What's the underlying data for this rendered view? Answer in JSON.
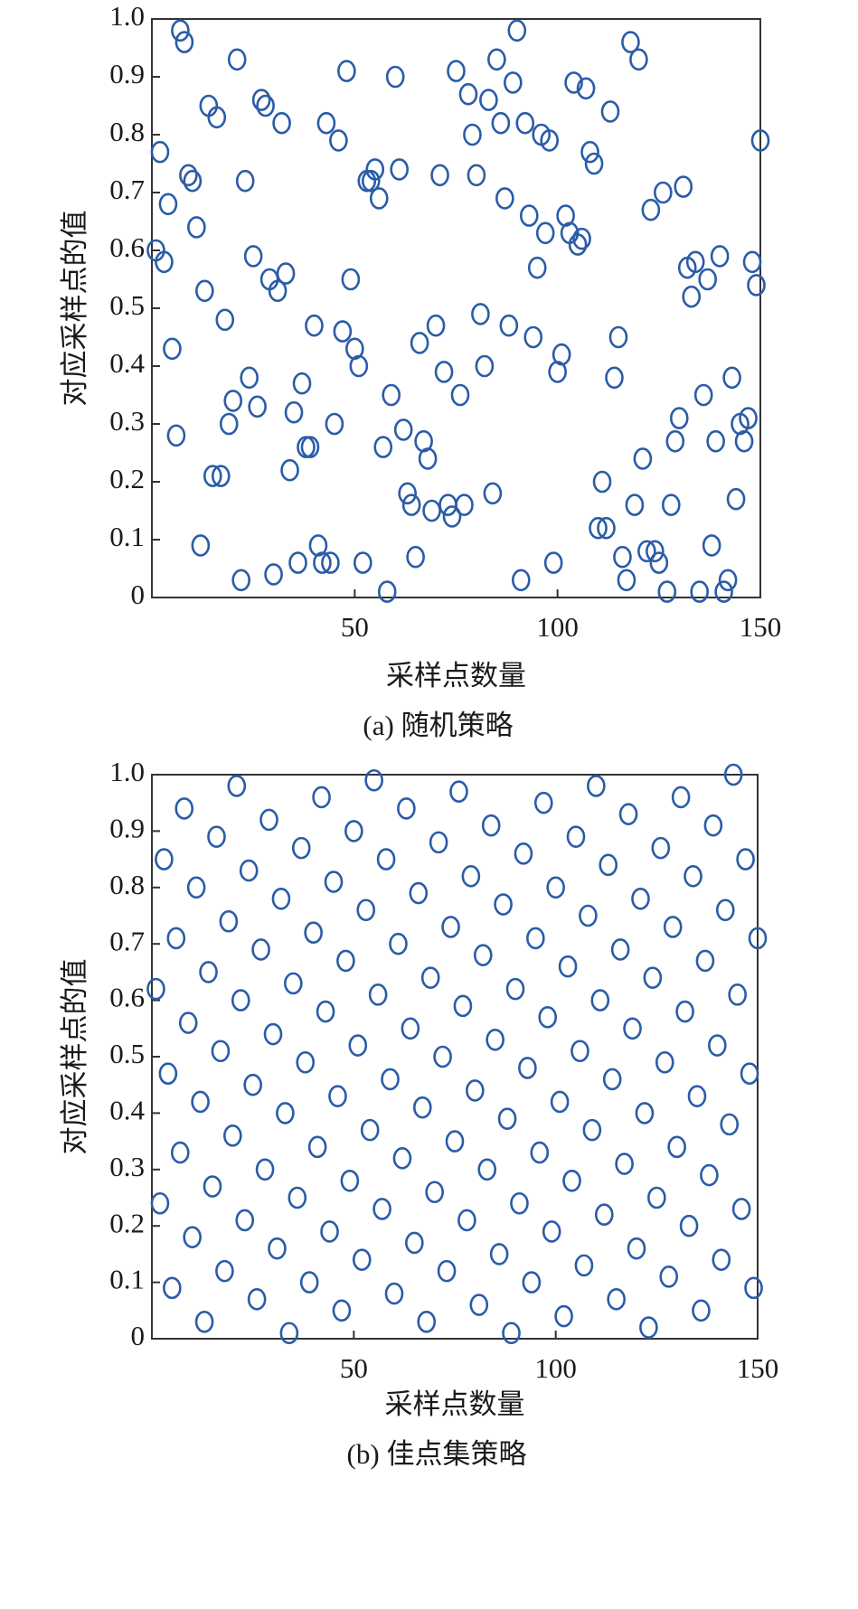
{
  "chart_data": [
    {
      "type": "scatter",
      "caption": "(a) 随机策略",
      "xlabel": "采样点数量",
      "ylabel": "对应采样点的值",
      "color": "#2a5ca8",
      "xlim": [
        0,
        150
      ],
      "xticks": [
        50,
        100,
        150
      ],
      "ylim": [
        0,
        1
      ],
      "yticks": [
        0,
        0.1,
        0.2,
        0.3,
        0.4,
        0.5,
        0.6,
        0.7,
        0.8,
        0.9,
        {
          "value": 1,
          "label": "1.0"
        }
      ],
      "x": [
        1,
        2,
        3,
        4,
        5,
        6,
        7,
        8,
        9,
        10,
        11,
        12,
        13,
        14,
        15,
        16,
        17,
        18,
        19,
        20,
        21,
        22,
        23,
        24,
        25,
        26,
        27,
        28,
        29,
        30,
        31,
        32,
        33,
        34,
        35,
        36,
        37,
        38,
        39,
        40,
        41,
        42,
        43,
        44,
        45,
        46,
        47,
        48,
        49,
        50,
        51,
        52,
        53,
        54,
        55,
        56,
        57,
        58,
        59,
        60,
        61,
        62,
        63,
        64,
        65,
        66,
        67,
        68,
        69,
        70,
        71,
        72,
        73,
        74,
        75,
        76,
        77,
        78,
        79,
        80,
        81,
        82,
        83,
        84,
        85,
        86,
        87,
        88,
        89,
        90,
        91,
        92,
        93,
        94,
        95,
        96,
        97,
        98,
        99,
        100,
        101,
        102,
        103,
        104,
        105,
        106,
        107,
        108,
        109,
        110,
        111,
        112,
        113,
        114,
        115,
        116,
        117,
        118,
        119,
        120,
        121,
        122,
        123,
        124,
        125,
        126,
        127,
        128,
        129,
        130,
        131,
        132,
        133,
        134,
        135,
        136,
        137,
        138,
        139,
        140,
        141,
        142,
        143,
        144,
        145,
        146,
        147,
        148,
        149,
        150
      ],
      "values": [
        0.6,
        0.77,
        0.58,
        0.68,
        0.43,
        0.28,
        0.98,
        0.96,
        0.73,
        0.72,
        0.64,
        0.09,
        0.53,
        0.85,
        0.21,
        0.83,
        0.21,
        0.48,
        0.3,
        0.34,
        0.93,
        0.03,
        0.72,
        0.38,
        0.59,
        0.33,
        0.86,
        0.85,
        0.55,
        0.04,
        0.53,
        0.82,
        0.56,
        0.22,
        0.32,
        0.06,
        0.37,
        0.26,
        0.26,
        0.47,
        0.09,
        0.06,
        0.82,
        0.06,
        0.3,
        0.79,
        0.46,
        0.91,
        0.55,
        0.43,
        0.4,
        0.06,
        0.72,
        0.72,
        0.74,
        0.69,
        0.26,
        0.01,
        0.35,
        0.9,
        0.74,
        0.29,
        0.18,
        0.16,
        0.07,
        0.44,
        0.27,
        0.24,
        0.15,
        0.47,
        0.73,
        0.39,
        0.16,
        0.14,
        0.91,
        0.35,
        0.16,
        0.87,
        0.8,
        0.73,
        0.49,
        0.4,
        0.86,
        0.18,
        0.93,
        0.82,
        0.69,
        0.47,
        0.89,
        0.98,
        0.03,
        0.82,
        0.66,
        0.45,
        0.57,
        0.8,
        0.63,
        0.79,
        0.06,
        0.39,
        0.42,
        0.66,
        0.63,
        0.89,
        0.61,
        0.62,
        0.88,
        0.77,
        0.75,
        0.12,
        0.2,
        0.12,
        0.84,
        0.38,
        0.45,
        0.07,
        0.03,
        0.96,
        0.16,
        0.93,
        0.24,
        0.08,
        0.67,
        0.08,
        0.06,
        0.7,
        0.01,
        0.16,
        0.27,
        0.31,
        0.71,
        0.57,
        0.52,
        0.58,
        0.01,
        0.35,
        0.55,
        0.09,
        0.27,
        0.59,
        0.01,
        0.03,
        0.38,
        0.17,
        0.3,
        0.27,
        0.31,
        0.58,
        0.54,
        0.79
      ]
    },
    {
      "type": "scatter",
      "caption": "(b) 佳点集策略",
      "xlabel": "采样点数量",
      "ylabel": "对应采样点的值",
      "color": "#2a5ca8",
      "xlim": [
        0,
        150
      ],
      "xticks": [
        50,
        100,
        150
      ],
      "ylim": [
        0,
        1
      ],
      "yticks": [
        0,
        0.1,
        0.2,
        0.3,
        0.4,
        0.5,
        0.6,
        0.7,
        0.8,
        0.9,
        {
          "value": 1,
          "label": "1.0"
        }
      ],
      "x": [
        1,
        2,
        3,
        4,
        5,
        6,
        7,
        8,
        9,
        10,
        11,
        12,
        13,
        14,
        15,
        16,
        17,
        18,
        19,
        20,
        21,
        22,
        23,
        24,
        25,
        26,
        27,
        28,
        29,
        30,
        31,
        32,
        33,
        34,
        35,
        36,
        37,
        38,
        39,
        40,
        41,
        42,
        43,
        44,
        45,
        46,
        47,
        48,
        49,
        50,
        51,
        52,
        53,
        54,
        55,
        56,
        57,
        58,
        59,
        60,
        61,
        62,
        63,
        64,
        65,
        66,
        67,
        68,
        69,
        70,
        71,
        72,
        73,
        74,
        75,
        76,
        77,
        78,
        79,
        80,
        81,
        82,
        83,
        84,
        85,
        86,
        87,
        88,
        89,
        90,
        91,
        92,
        93,
        94,
        95,
        96,
        97,
        98,
        99,
        100,
        101,
        102,
        103,
        104,
        105,
        106,
        107,
        108,
        109,
        110,
        111,
        112,
        113,
        114,
        115,
        116,
        117,
        118,
        119,
        120,
        121,
        122,
        123,
        124,
        125,
        126,
        127,
        128,
        129,
        130,
        131,
        132,
        133,
        134,
        135,
        136,
        137,
        138,
        139,
        140,
        141,
        142,
        143,
        144,
        145,
        146,
        147,
        148,
        149,
        150
      ],
      "values": [
        0.62,
        0.24,
        0.85,
        0.47,
        0.09,
        0.71,
        0.33,
        0.94,
        0.56,
        0.18,
        0.8,
        0.42,
        0.03,
        0.65,
        0.27,
        0.89,
        0.51,
        0.12,
        0.74,
        0.36,
        0.98,
        0.6,
        0.21,
        0.83,
        0.45,
        0.07,
        0.69,
        0.3,
        0.92,
        0.54,
        0.16,
        0.78,
        0.4,
        0.01,
        0.63,
        0.25,
        0.87,
        0.49,
        0.1,
        0.72,
        0.34,
        0.96,
        0.58,
        0.19,
        0.81,
        0.43,
        0.05,
        0.67,
        0.28,
        0.9,
        0.52,
        0.14,
        0.76,
        0.37,
        0.99,
        0.61,
        0.23,
        0.85,
        0.46,
        0.08,
        0.7,
        0.32,
        0.94,
        0.55,
        0.17,
        0.79,
        0.41,
        0.03,
        0.64,
        0.26,
        0.88,
        0.5,
        0.12,
        0.73,
        0.35,
        0.97,
        0.59,
        0.21,
        0.82,
        0.44,
        0.06,
        0.68,
        0.3,
        0.91,
        0.53,
        0.15,
        0.77,
        0.39,
        0.01,
        0.62,
        0.24,
        0.86,
        0.48,
        0.1,
        0.71,
        0.33,
        0.95,
        0.57,
        0.19,
        0.8,
        0.42,
        0.04,
        0.66,
        0.28,
        0.89,
        0.51,
        0.13,
        0.75,
        0.37,
        0.98,
        0.6,
        0.22,
        0.84,
        0.46,
        0.07,
        0.69,
        0.31,
        0.93,
        0.55,
        0.16,
        0.78,
        0.4,
        0.02,
        0.64,
        0.25,
        0.87,
        0.49,
        0.11,
        0.73,
        0.34,
        0.96,
        0.58,
        0.2,
        0.82,
        0.43,
        0.05,
        0.67,
        0.29,
        0.91,
        0.52,
        0.14,
        0.76,
        0.38,
        1.0,
        0.61,
        0.23,
        0.85,
        0.47,
        0.09,
        0.71
      ]
    }
  ]
}
